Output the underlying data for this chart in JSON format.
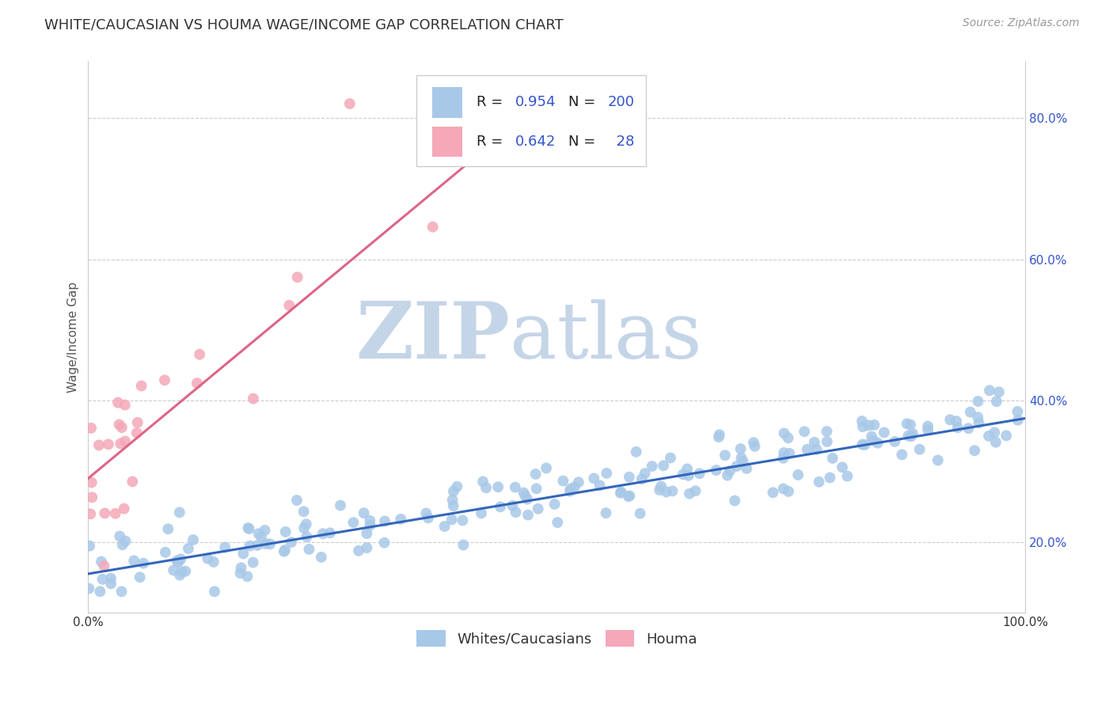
{
  "title": "WHITE/CAUCASIAN VS HOUMA WAGE/INCOME GAP CORRELATION CHART",
  "source": "Source: ZipAtlas.com",
  "ylabel": "Wage/Income Gap",
  "xlabel": "",
  "xlim": [
    0,
    1.0
  ],
  "ylim": [
    0.1,
    0.88
  ],
  "yticks": [
    0.2,
    0.4,
    0.6,
    0.8
  ],
  "ytick_labels": [
    "20.0%",
    "40.0%",
    "60.0%",
    "80.0%"
  ],
  "xticks": [
    0.0,
    0.25,
    0.5,
    0.75,
    1.0
  ],
  "xtick_labels": [
    "0.0%",
    "",
    "",
    "",
    "100.0%"
  ],
  "blue_R": 0.954,
  "blue_N": 200,
  "pink_R": 0.642,
  "pink_N": 28,
  "blue_color": "#a8c8e8",
  "pink_color": "#f4a8b8",
  "blue_line_color": "#3366bb",
  "pink_line_color": "#dd6688",
  "legend_num_color": "#3355cc",
  "legend_text_color": "#222222",
  "watermark_ZIP_color": "#c5d5e8",
  "watermark_atlas_color": "#c5d5e8",
  "background_color": "#ffffff",
  "grid_color": "#cccccc",
  "title_fontsize": 13,
  "source_fontsize": 10,
  "axis_label_fontsize": 11,
  "tick_fontsize": 11,
  "legend_fontsize": 13,
  "blue_line_intercept": 0.155,
  "blue_line_slope": 0.22,
  "pink_line_intercept": 0.29,
  "pink_line_slope": 1.1,
  "blue_scatter_seed": 42,
  "pink_scatter_seed": 17
}
